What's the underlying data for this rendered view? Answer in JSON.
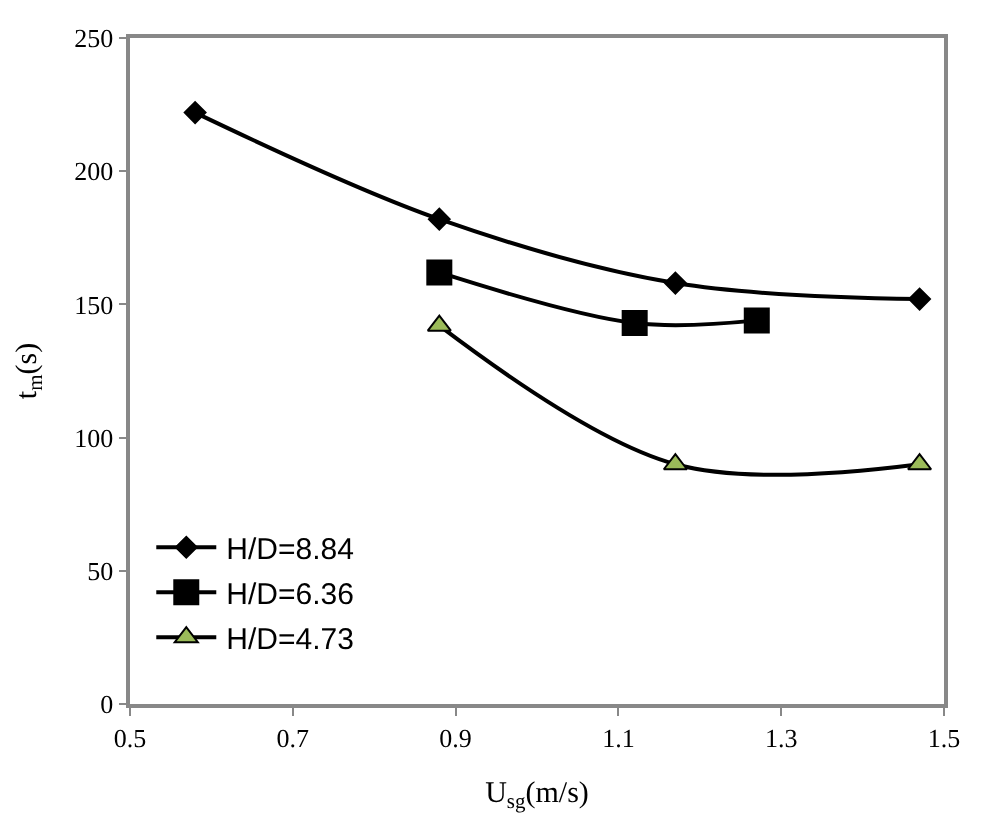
{
  "chart_data": {
    "type": "line",
    "xlabel": "U$_{sg}$(m/s)",
    "ylabel": "t$_{m}$(s)",
    "xlim": [
      0.5,
      1.5
    ],
    "xticks": [
      0.5,
      0.7,
      0.9,
      1.1,
      1.3,
      1.5
    ],
    "ylim": [
      0,
      250
    ],
    "yticks": [
      0,
      50,
      100,
      150,
      200,
      250
    ],
    "legend": "bottom left",
    "series": [
      {
        "name": "H/D=8.84",
        "color": "#000000",
        "marker": "diamond",
        "x": [
          0.58,
          0.88,
          1.17,
          1.47
        ],
        "values": [
          222,
          182,
          158,
          152
        ]
      },
      {
        "name": "H/D=6.36",
        "color": "#000000",
        "marker": "square",
        "x": [
          0.88,
          1.12,
          1.27
        ],
        "values": [
          162,
          143,
          144
        ]
      },
      {
        "name": "H/D=4.73",
        "color": "#9bbb59",
        "marker": "triangle",
        "x": [
          0.88,
          1.17,
          1.47
        ],
        "values": [
          142,
          90,
          90
        ]
      }
    ]
  }
}
